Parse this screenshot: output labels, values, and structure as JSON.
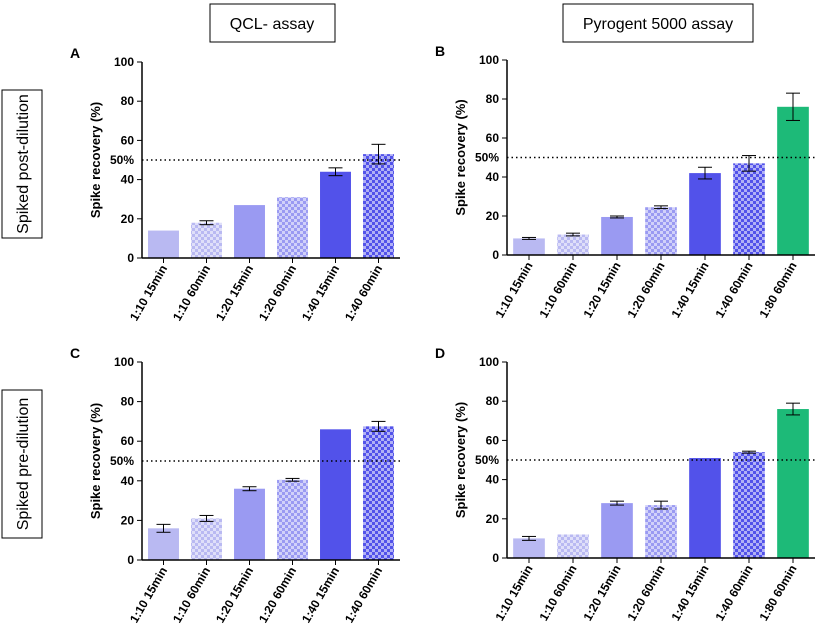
{
  "column_headers": [
    "QCL- assay",
    "Pyrogent 5000 assay"
  ],
  "row_labels": [
    "Spiked post-dilution",
    "Spiked pre-dilution"
  ],
  "chart_data": [
    {
      "type": "bar",
      "panel": "A",
      "ylabel": "Spike recovery (%)",
      "categories": [
        "1:10 15min",
        "1:10 60min",
        "1:20 15min",
        "1:20 60min",
        "1:40 15min",
        "1:40 60min"
      ],
      "values": [
        14,
        18,
        27,
        31,
        44,
        53
      ],
      "errors": [
        null,
        1,
        null,
        null,
        2,
        5
      ],
      "colors": [
        "#b9b9f2",
        "#b9b9f2",
        "#9a9af2",
        "#9a9af2",
        "#5252ea",
        "#5252ea"
      ],
      "checkered": [
        false,
        true,
        false,
        true,
        false,
        true
      ],
      "ylim": [
        0,
        100
      ],
      "yticks": [
        0,
        20,
        40,
        60,
        80,
        100
      ],
      "reference_line": {
        "value": 50,
        "label": "50%"
      }
    },
    {
      "type": "bar",
      "panel": "B",
      "ylabel": "Spike recovery (%)",
      "categories": [
        "1:10 15min",
        "1:10 60min",
        "1:20 15min",
        "1:20 60min",
        "1:40 15min",
        "1:40 60min",
        "1:80 60min"
      ],
      "values": [
        8.5,
        10.5,
        19.5,
        24.5,
        42,
        47,
        76
      ],
      "errors": [
        0.5,
        0.7,
        0.5,
        0.7,
        3,
        4,
        7
      ],
      "colors": [
        "#b9b9f2",
        "#b9b9f2",
        "#9a9af2",
        "#9a9af2",
        "#5252ea",
        "#5252ea",
        "#1dba78"
      ],
      "checkered": [
        false,
        true,
        false,
        true,
        false,
        true,
        false
      ],
      "ylim": [
        0,
        100
      ],
      "yticks": [
        0,
        20,
        40,
        60,
        80,
        100
      ],
      "reference_line": {
        "value": 50,
        "label": "50%"
      }
    },
    {
      "type": "bar",
      "panel": "C",
      "ylabel": "Spike recovery (%)",
      "categories": [
        "1:10 15min",
        "1:10 60min",
        "1:20 15min",
        "1:20 60min",
        "1:40 15min",
        "1:40 60min"
      ],
      "values": [
        16,
        21,
        36,
        40.5,
        66,
        67.5
      ],
      "errors": [
        2,
        1.5,
        1,
        0.7,
        null,
        2.5
      ],
      "colors": [
        "#b9b9f2",
        "#b9b9f2",
        "#9a9af2",
        "#9a9af2",
        "#5252ea",
        "#5252ea"
      ],
      "checkered": [
        false,
        true,
        false,
        true,
        false,
        true
      ],
      "ylim": [
        0,
        100
      ],
      "yticks": [
        0,
        20,
        40,
        60,
        80,
        100
      ],
      "reference_line": {
        "value": 50,
        "label": "50%"
      }
    },
    {
      "type": "bar",
      "panel": "D",
      "ylabel": "Spike recovery (%)",
      "categories": [
        "1:10 15min",
        "1:10 60min",
        "1:20 15min",
        "1:20 60min",
        "1:40 15min",
        "1:40 60min",
        "1:80 60min"
      ],
      "values": [
        10,
        12,
        28,
        27,
        51,
        54,
        76
      ],
      "errors": [
        1,
        null,
        1,
        2,
        null,
        0.5,
        3
      ],
      "colors": [
        "#b9b9f2",
        "#b9b9f2",
        "#9a9af2",
        "#9a9af2",
        "#5252ea",
        "#5252ea",
        "#1dba78"
      ],
      "checkered": [
        false,
        true,
        false,
        true,
        false,
        true,
        false
      ],
      "ylim": [
        0,
        100
      ],
      "yticks": [
        0,
        20,
        40,
        60,
        80,
        100
      ],
      "reference_line": {
        "value": 50,
        "label": "50%"
      }
    }
  ]
}
